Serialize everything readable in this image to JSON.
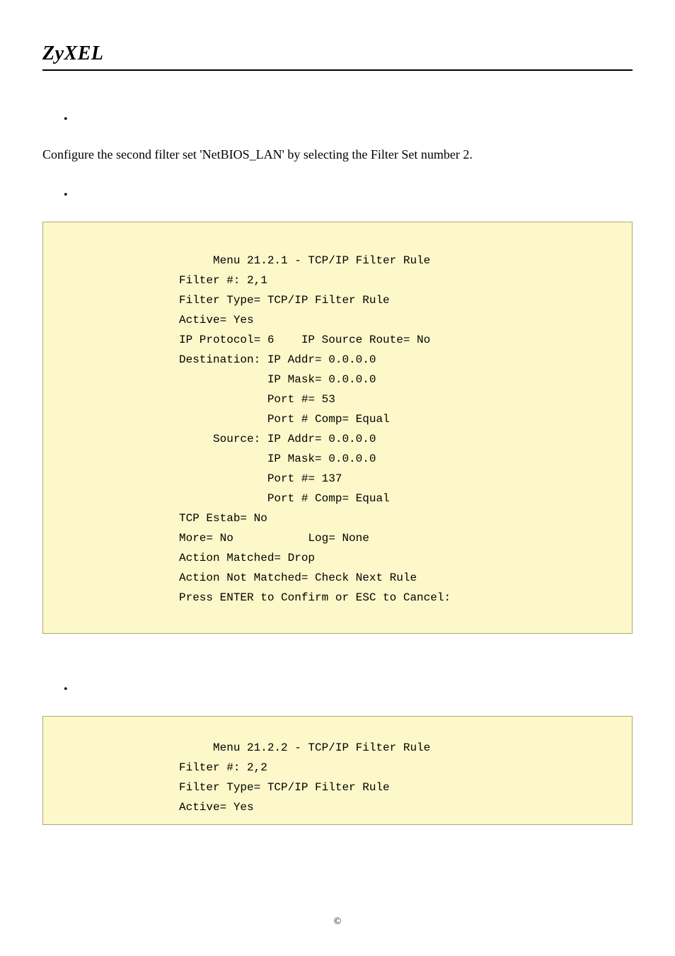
{
  "brand": "ZyXEL",
  "intro_text": "Configure the second filter set 'NetBIOS_LAN' by selecting the Filter Set number 2.",
  "box1": {
    "bg_color": "#fdf8c9",
    "border_color": "#b0aa70",
    "font_family": "Courier New",
    "font_size_pt": 12,
    "line_height": 1.75,
    "lines": [
      "     Menu 21.2.1 - TCP/IP Filter Rule",
      "Filter #: 2,1",
      "Filter Type= TCP/IP Filter Rule",
      "Active= Yes",
      "IP Protocol= 6    IP Source Route= No",
      "Destination: IP Addr= 0.0.0.0",
      "             IP Mask= 0.0.0.0",
      "             Port #= 53",
      "             Port # Comp= Equal",
      "     Source: IP Addr= 0.0.0.0",
      "             IP Mask= 0.0.0.0",
      "             Port #= 137",
      "             Port # Comp= Equal",
      "TCP Estab= No",
      "More= No           Log= None",
      "Action Matched= Drop",
      "Action Not Matched= Check Next Rule",
      "Press ENTER to Confirm or ESC to Cancel:"
    ]
  },
  "box2": {
    "bg_color": "#fdf8c9",
    "border_color": "#b0aa70",
    "font_family": "Courier New",
    "font_size_pt": 12,
    "line_height": 1.75,
    "lines": [
      "     Menu 21.2.2 - TCP/IP Filter Rule",
      "Filter #: 2,2",
      "Filter Type= TCP/IP Filter Rule",
      "Active= Yes"
    ]
  },
  "footer_symbol": "©"
}
